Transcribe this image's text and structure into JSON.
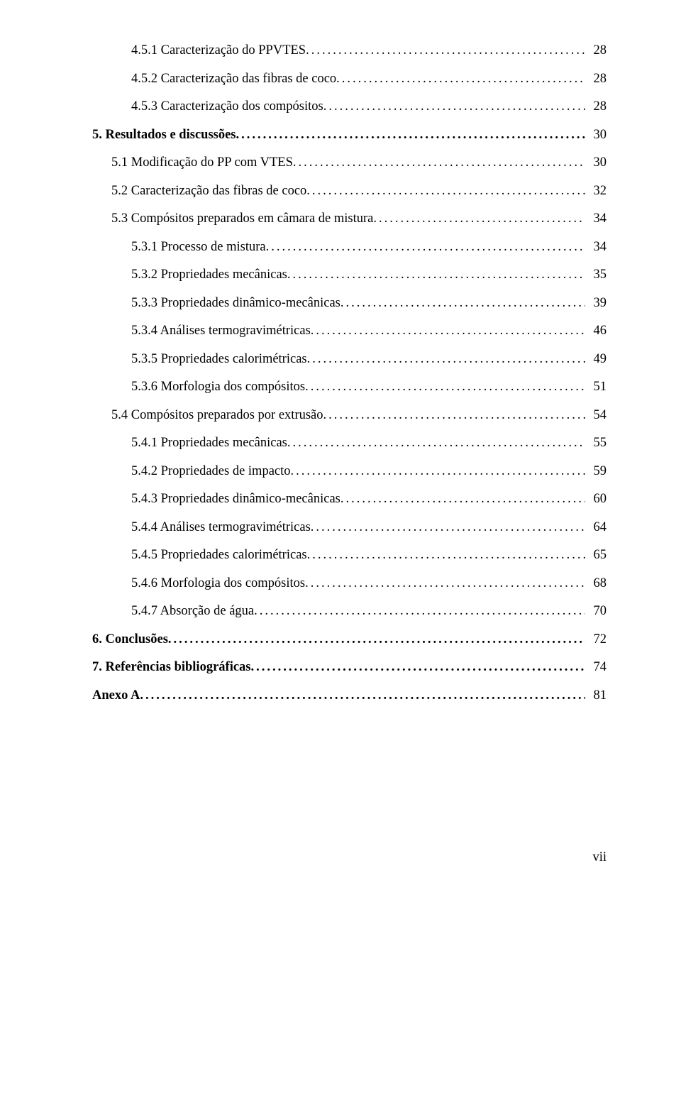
{
  "toc": [
    {
      "indent": 2,
      "bold": false,
      "label": "4.5.1 Caracterização do PPVTES",
      "page": "28"
    },
    {
      "indent": 2,
      "bold": false,
      "label": "4.5.2 Caracterização das fibras de coco",
      "page": "28"
    },
    {
      "indent": 2,
      "bold": false,
      "label": "4.5.3 Caracterização dos compósitos",
      "page": "28"
    },
    {
      "indent": 0,
      "bold": true,
      "label": "5. Resultados e discussões",
      "page": "30"
    },
    {
      "indent": 1,
      "bold": false,
      "label": "5.1 Modificação do PP com VTES",
      "page": "30"
    },
    {
      "indent": 1,
      "bold": false,
      "label": "5.2 Caracterização das fibras de coco",
      "page": "32"
    },
    {
      "indent": 1,
      "bold": false,
      "label": "5.3 Compósitos preparados em câmara de mistura",
      "page": "34"
    },
    {
      "indent": 2,
      "bold": false,
      "label": "5.3.1 Processo de mistura",
      "page": "34"
    },
    {
      "indent": 2,
      "bold": false,
      "label": "5.3.2 Propriedades mecânicas",
      "page": "35"
    },
    {
      "indent": 2,
      "bold": false,
      "label": "5.3.3 Propriedades dinâmico-mecânicas",
      "page": "39"
    },
    {
      "indent": 2,
      "bold": false,
      "label": "5.3.4 Análises termogravimétricas",
      "page": "46"
    },
    {
      "indent": 2,
      "bold": false,
      "label": "5.3.5 Propriedades calorimétricas",
      "page": "49"
    },
    {
      "indent": 2,
      "bold": false,
      "label": "5.3.6 Morfologia dos compósitos",
      "page": "51"
    },
    {
      "indent": 1,
      "bold": false,
      "label": "5.4 Compósitos preparados por extrusão",
      "page": "54"
    },
    {
      "indent": 2,
      "bold": false,
      "label": "5.4.1 Propriedades mecânicas",
      "page": "55"
    },
    {
      "indent": 2,
      "bold": false,
      "label": "5.4.2 Propriedades de impacto",
      "page": "59"
    },
    {
      "indent": 2,
      "bold": false,
      "label": "5.4.3 Propriedades dinâmico-mecânicas",
      "page": "60"
    },
    {
      "indent": 2,
      "bold": false,
      "label": "5.4.4 Análises termogravimétricas",
      "page": "64"
    },
    {
      "indent": 2,
      "bold": false,
      "label": "5.4.5 Propriedades calorimétricas",
      "page": "65"
    },
    {
      "indent": 2,
      "bold": false,
      "label": "5.4.6 Morfologia dos compósitos",
      "page": "68"
    },
    {
      "indent": 2,
      "bold": false,
      "label": "5.4.7 Absorção de água",
      "page": "70"
    },
    {
      "indent": 0,
      "bold": true,
      "label": "6. Conclusões",
      "page": "72"
    },
    {
      "indent": 0,
      "bold": true,
      "label": "7. Referências bibliográficas",
      "page": "74"
    },
    {
      "indent": 0,
      "bold": true,
      "label": "Anexo A",
      "page": "81"
    }
  ],
  "footer": "vii"
}
